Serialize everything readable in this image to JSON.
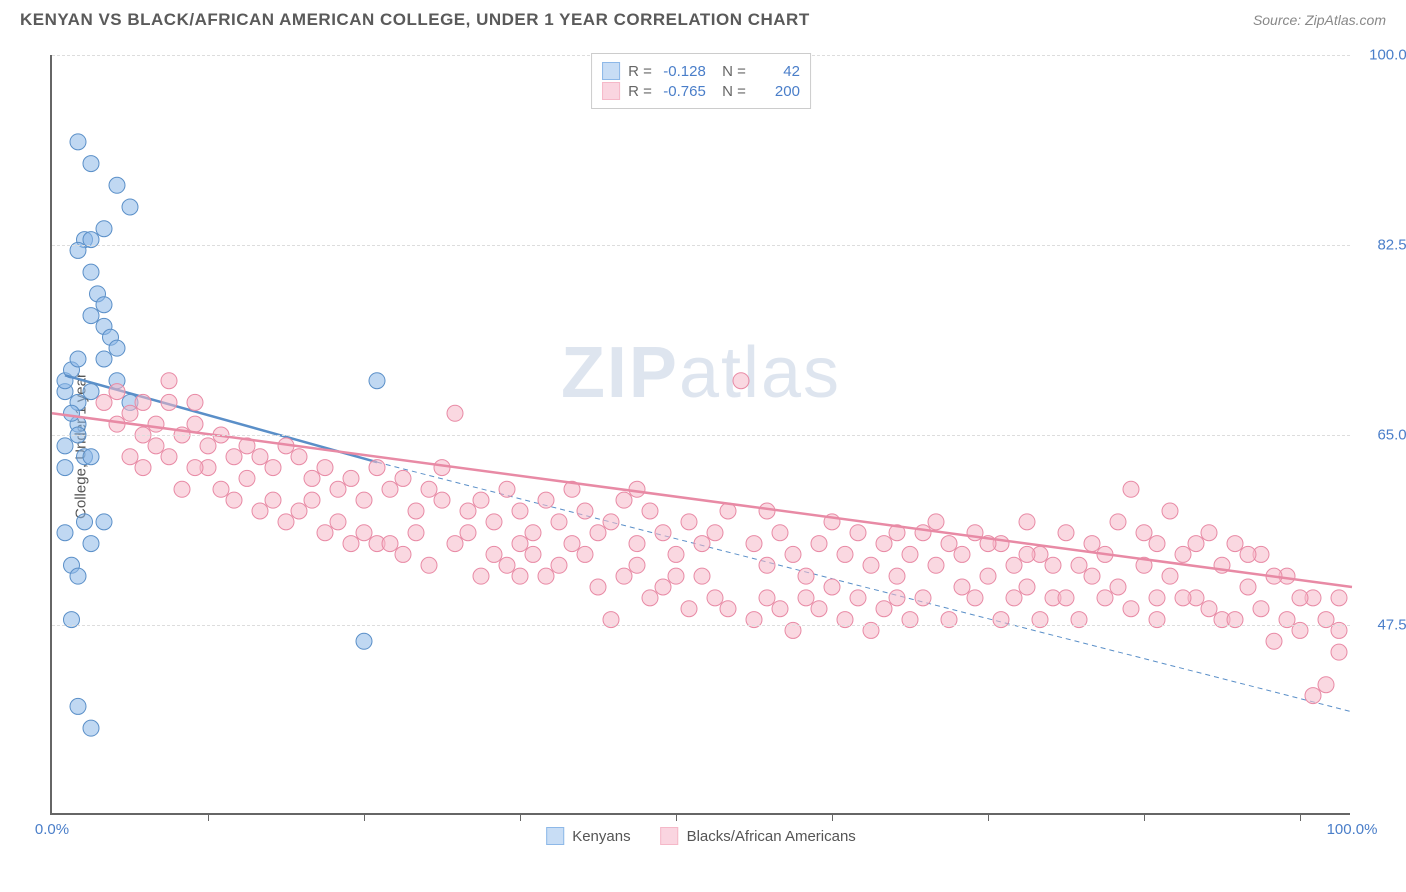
{
  "header": {
    "title": "KENYAN VS BLACK/AFRICAN AMERICAN COLLEGE, UNDER 1 YEAR CORRELATION CHART",
    "source": "Source: ZipAtlas.com"
  },
  "chart": {
    "type": "scatter",
    "ylabel": "College, Under 1 year",
    "watermark": "ZIPatlas",
    "background_color": "#ffffff",
    "grid_color": "#dddddd",
    "axis_color": "#666666",
    "tick_color": "#4a7ec9",
    "xlim": [
      0,
      100
    ],
    "ylim": [
      30,
      100
    ],
    "yticks": [
      {
        "value": 100.0,
        "label": "100.0%"
      },
      {
        "value": 82.5,
        "label": "82.5%"
      },
      {
        "value": 65.0,
        "label": "65.0%"
      },
      {
        "value": 47.5,
        "label": "47.5%"
      }
    ],
    "xticks": [
      {
        "value": 0.0,
        "label": "0.0%"
      },
      {
        "value": 100.0,
        "label": "100.0%"
      }
    ],
    "xmarks": [
      12,
      24,
      36,
      48,
      60,
      72,
      84,
      96
    ],
    "marker_radius": 8,
    "marker_opacity": 0.55,
    "series": [
      {
        "name": "Kenyans",
        "color": "#8db8e8",
        "border": "#5a8fc8",
        "R": "-0.128",
        "N": "42",
        "regression_solid": {
          "x1": 1,
          "y1": 70.5,
          "x2": 25,
          "y2": 62.5,
          "width": 2.5
        },
        "regression_dashed": {
          "x1": 25,
          "y1": 62.5,
          "x2": 100,
          "y2": 39.5,
          "dash": "5,4",
          "width": 1
        },
        "points": [
          [
            1,
            69
          ],
          [
            1,
            70
          ],
          [
            1.5,
            71
          ],
          [
            2,
            72
          ],
          [
            2,
            66
          ],
          [
            2.5,
            83
          ],
          [
            3,
            83
          ],
          [
            3,
            90
          ],
          [
            3.5,
            78
          ],
          [
            4,
            77
          ],
          [
            4,
            75
          ],
          [
            4.5,
            74
          ],
          [
            5,
            73
          ],
          [
            5,
            88
          ],
          [
            6,
            86
          ],
          [
            4,
            84
          ],
          [
            3,
            80
          ],
          [
            2,
            68
          ],
          [
            2,
            65
          ],
          [
            2.5,
            63
          ],
          [
            3,
            63
          ],
          [
            1,
            64
          ],
          [
            1,
            62
          ],
          [
            1,
            56
          ],
          [
            1.5,
            53
          ],
          [
            2,
            52
          ],
          [
            2.5,
            57
          ],
          [
            3,
            55
          ],
          [
            4,
            57
          ],
          [
            1.5,
            48
          ],
          [
            2,
            40
          ],
          [
            3,
            38
          ],
          [
            25,
            70
          ],
          [
            24,
            46
          ],
          [
            2,
            82
          ],
          [
            3,
            76
          ],
          [
            4,
            72
          ],
          [
            5,
            70
          ],
          [
            6,
            68
          ],
          [
            2,
            92
          ],
          [
            1.5,
            67
          ],
          [
            3,
            69
          ]
        ]
      },
      {
        "name": "Blacks/African Americans",
        "color": "#f5b8c8",
        "border": "#e88aa5",
        "R": "-0.765",
        "N": "200",
        "regression_solid": {
          "x1": 0,
          "y1": 67,
          "x2": 100,
          "y2": 51,
          "width": 2.5
        },
        "points": [
          [
            4,
            68
          ],
          [
            5,
            66
          ],
          [
            6,
            67
          ],
          [
            7,
            65
          ],
          [
            8,
            66
          ],
          [
            8,
            64
          ],
          [
            9,
            68
          ],
          [
            10,
            65
          ],
          [
            11,
            66
          ],
          [
            12,
            64
          ],
          [
            12,
            62
          ],
          [
            13,
            65
          ],
          [
            14,
            63
          ],
          [
            15,
            64
          ],
          [
            15,
            61
          ],
          [
            16,
            63
          ],
          [
            17,
            62
          ],
          [
            18,
            64
          ],
          [
            19,
            63
          ],
          [
            20,
            61
          ],
          [
            20,
            59
          ],
          [
            21,
            62
          ],
          [
            22,
            60
          ],
          [
            23,
            61
          ],
          [
            24,
            59
          ],
          [
            25,
            62
          ],
          [
            25,
            55
          ],
          [
            26,
            60
          ],
          [
            27,
            61
          ],
          [
            28,
            58
          ],
          [
            29,
            60
          ],
          [
            30,
            59
          ],
          [
            30,
            62
          ],
          [
            31,
            67
          ],
          [
            32,
            58
          ],
          [
            33,
            59
          ],
          [
            34,
            57
          ],
          [
            35,
            60
          ],
          [
            36,
            58
          ],
          [
            37,
            56
          ],
          [
            38,
            59
          ],
          [
            39,
            57
          ],
          [
            40,
            60
          ],
          [
            40,
            55
          ],
          [
            41,
            58
          ],
          [
            42,
            56
          ],
          [
            43,
            48
          ],
          [
            43,
            57
          ],
          [
            44,
            59
          ],
          [
            45,
            55
          ],
          [
            46,
            58
          ],
          [
            47,
            56
          ],
          [
            48,
            54
          ],
          [
            49,
            57
          ],
          [
            50,
            55
          ],
          [
            50,
            52
          ],
          [
            51,
            56
          ],
          [
            52,
            58
          ],
          [
            53,
            70
          ],
          [
            54,
            55
          ],
          [
            55,
            53
          ],
          [
            56,
            56
          ],
          [
            57,
            54
          ],
          [
            58,
            52
          ],
          [
            59,
            55
          ],
          [
            60,
            57
          ],
          [
            60,
            51
          ],
          [
            61,
            54
          ],
          [
            62,
            56
          ],
          [
            63,
            53
          ],
          [
            64,
            55
          ],
          [
            65,
            52
          ],
          [
            66,
            54
          ],
          [
            67,
            56
          ],
          [
            68,
            53
          ],
          [
            69,
            55
          ],
          [
            70,
            51
          ],
          [
            70,
            54
          ],
          [
            71,
            56
          ],
          [
            72,
            52
          ],
          [
            73,
            55
          ],
          [
            74,
            53
          ],
          [
            75,
            51
          ],
          [
            76,
            54
          ],
          [
            77,
            50
          ],
          [
            78,
            56
          ],
          [
            79,
            53
          ],
          [
            80,
            55
          ],
          [
            80,
            52
          ],
          [
            81,
            54
          ],
          [
            82,
            51
          ],
          [
            83,
            60
          ],
          [
            84,
            53
          ],
          [
            85,
            55
          ],
          [
            86,
            52
          ],
          [
            87,
            54
          ],
          [
            88,
            50
          ],
          [
            89,
            56
          ],
          [
            90,
            53
          ],
          [
            90,
            48
          ],
          [
            91,
            55
          ],
          [
            92,
            51
          ],
          [
            93,
            54
          ],
          [
            94,
            46
          ],
          [
            95,
            52
          ],
          [
            96,
            47
          ],
          [
            97,
            50
          ],
          [
            97,
            41
          ],
          [
            98,
            42
          ],
          [
            99,
            47
          ],
          [
            6,
            63
          ],
          [
            7,
            62
          ],
          [
            9,
            63
          ],
          [
            10,
            60
          ],
          [
            11,
            62
          ],
          [
            13,
            60
          ],
          [
            14,
            59
          ],
          [
            16,
            58
          ],
          [
            17,
            59
          ],
          [
            18,
            57
          ],
          [
            19,
            58
          ],
          [
            21,
            56
          ],
          [
            22,
            57
          ],
          [
            23,
            55
          ],
          [
            24,
            56
          ],
          [
            26,
            55
          ],
          [
            27,
            54
          ],
          [
            28,
            56
          ],
          [
            29,
            53
          ],
          [
            31,
            55
          ],
          [
            32,
            56
          ],
          [
            33,
            52
          ],
          [
            34,
            54
          ],
          [
            35,
            53
          ],
          [
            36,
            55
          ],
          [
            37,
            54
          ],
          [
            38,
            52
          ],
          [
            39,
            53
          ],
          [
            41,
            54
          ],
          [
            42,
            51
          ],
          [
            44,
            52
          ],
          [
            45,
            53
          ],
          [
            46,
            50
          ],
          [
            47,
            51
          ],
          [
            48,
            52
          ],
          [
            49,
            49
          ],
          [
            51,
            50
          ],
          [
            52,
            49
          ],
          [
            54,
            48
          ],
          [
            55,
            50
          ],
          [
            56,
            49
          ],
          [
            57,
            47
          ],
          [
            58,
            50
          ],
          [
            59,
            49
          ],
          [
            61,
            48
          ],
          [
            62,
            50
          ],
          [
            63,
            47
          ],
          [
            64,
            49
          ],
          [
            65,
            50
          ],
          [
            66,
            48
          ],
          [
            67,
            50
          ],
          [
            68,
            57
          ],
          [
            69,
            48
          ],
          [
            71,
            50
          ],
          [
            72,
            55
          ],
          [
            73,
            48
          ],
          [
            74,
            50
          ],
          [
            75,
            54
          ],
          [
            76,
            48
          ],
          [
            77,
            53
          ],
          [
            78,
            50
          ],
          [
            79,
            48
          ],
          [
            81,
            50
          ],
          [
            82,
            57
          ],
          [
            83,
            49
          ],
          [
            84,
            56
          ],
          [
            85,
            48
          ],
          [
            86,
            58
          ],
          [
            87,
            50
          ],
          [
            88,
            55
          ],
          [
            89,
            49
          ],
          [
            91,
            48
          ],
          [
            92,
            54
          ],
          [
            93,
            49
          ],
          [
            94,
            52
          ],
          [
            95,
            48
          ],
          [
            96,
            50
          ],
          [
            98,
            48
          ],
          [
            99,
            45
          ],
          [
            99,
            50
          ],
          [
            5,
            69
          ],
          [
            7,
            68
          ],
          [
            9,
            70
          ],
          [
            11,
            68
          ],
          [
            36,
            52
          ],
          [
            45,
            60
          ],
          [
            55,
            58
          ],
          [
            65,
            56
          ],
          [
            75,
            57
          ],
          [
            85,
            50
          ]
        ]
      }
    ],
    "legend": {
      "series1": "Kenyans",
      "series2": "Blacks/African Americans"
    }
  }
}
